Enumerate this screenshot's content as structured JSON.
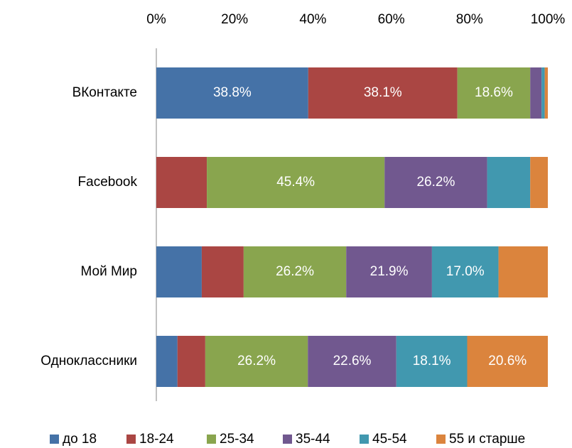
{
  "chart_data": {
    "type": "stacked_barh",
    "categories": [
      "ВКонтакте",
      "Facebook",
      "Мой Мир",
      "Одноклассники"
    ],
    "series": [
      {
        "name": "до 18",
        "color": "#4572a7",
        "values": [
          38.8,
          0,
          11.6,
          5.4
        ],
        "value_labels": [
          "38.8%",
          null,
          null,
          null
        ]
      },
      {
        "name": "18-24",
        "color": "#aa4643",
        "values": [
          38.1,
          12.9,
          10.7,
          7.1
        ],
        "value_labels": [
          "38.1%",
          null,
          null,
          null
        ]
      },
      {
        "name": "25-34",
        "color": "#89a54e",
        "values": [
          18.6,
          45.4,
          26.2,
          26.2
        ],
        "value_labels": [
          "18.6%",
          "45.4%",
          "26.2%",
          "26.2%"
        ]
      },
      {
        "name": "35-44",
        "color": "#71588f",
        "values": [
          2.9,
          26.2,
          21.9,
          22.6
        ],
        "value_labels": [
          null,
          "26.2%",
          "21.9%",
          "22.6%"
        ]
      },
      {
        "name": "45-54",
        "color": "#4198af",
        "values": [
          0.8,
          11.0,
          17.0,
          18.1
        ],
        "value_labels": [
          null,
          null,
          "17.0%",
          "18.1%"
        ]
      },
      {
        "name": "55 и старше",
        "color": "#db843d",
        "values": [
          0.8,
          4.5,
          12.6,
          20.6
        ],
        "value_labels": [
          null,
          null,
          null,
          "20.6%"
        ]
      }
    ],
    "xlim": [
      0,
      100
    ],
    "xticks": [
      {
        "value": 0,
        "label": "0%"
      },
      {
        "value": 20,
        "label": "20%"
      },
      {
        "value": 40,
        "label": "40%"
      },
      {
        "value": 60,
        "label": "60%"
      },
      {
        "value": 80,
        "label": "80%"
      },
      {
        "value": 100,
        "label": "100%"
      }
    ],
    "grid": false,
    "legend": "bottom"
  }
}
